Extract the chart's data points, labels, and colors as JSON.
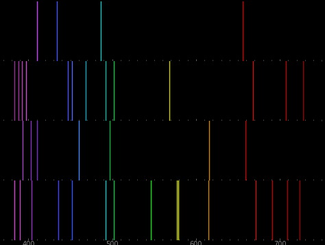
{
  "spectra": [
    {
      "lines": [
        {
          "wavelength": 410,
          "color": "#cc44ff"
        },
        {
          "wavelength": 434,
          "color": "#4455ff"
        },
        {
          "wavelength": 486,
          "color": "#00cccc"
        },
        {
          "wavelength": 656,
          "color": "#cc0000"
        }
      ]
    },
    {
      "lines": [
        {
          "wavelength": 383,
          "color": "#993399"
        },
        {
          "wavelength": 388,
          "color": "#aa33aa"
        },
        {
          "wavelength": 392,
          "color": "#bb44bb"
        },
        {
          "wavelength": 397,
          "color": "#cc55cc"
        },
        {
          "wavelength": 447,
          "color": "#4455ff"
        },
        {
          "wavelength": 452,
          "color": "#5566ff"
        },
        {
          "wavelength": 468,
          "color": "#00aacc"
        },
        {
          "wavelength": 492,
          "color": "#00bbaa"
        },
        {
          "wavelength": 502,
          "color": "#00cc44"
        },
        {
          "wavelength": 568,
          "color": "#cccc00"
        },
        {
          "wavelength": 668,
          "color": "#cc1111"
        },
        {
          "wavelength": 707,
          "color": "#bb0000"
        },
        {
          "wavelength": 728,
          "color": "#990000"
        }
      ]
    },
    {
      "lines": [
        {
          "wavelength": 393,
          "color": "#aa44cc"
        },
        {
          "wavelength": 403,
          "color": "#8833cc"
        },
        {
          "wavelength": 410,
          "color": "#7733cc"
        },
        {
          "wavelength": 460,
          "color": "#4488ff"
        },
        {
          "wavelength": 497,
          "color": "#00bb44"
        },
        {
          "wavelength": 616,
          "color": "#cc8800"
        },
        {
          "wavelength": 659,
          "color": "#cc0000"
        }
      ]
    },
    {
      "lines": [
        {
          "wavelength": 383,
          "color": "#dd44dd"
        },
        {
          "wavelength": 390,
          "color": "#cc44cc"
        },
        {
          "wavelength": 404,
          "color": "#9933cc"
        },
        {
          "wavelength": 436,
          "color": "#4444ff"
        },
        {
          "wavelength": 452,
          "color": "#3355ff"
        },
        {
          "wavelength": 492,
          "color": "#00cccc"
        },
        {
          "wavelength": 502,
          "color": "#00cc44"
        },
        {
          "wavelength": 546,
          "color": "#00ee00"
        },
        {
          "wavelength": 577,
          "color": "#ccdd00"
        },
        {
          "wavelength": 579,
          "color": "#dddd00"
        },
        {
          "wavelength": 615,
          "color": "#cc8800"
        },
        {
          "wavelength": 671,
          "color": "#cc1111"
        },
        {
          "wavelength": 691,
          "color": "#bb0000"
        },
        {
          "wavelength": 709,
          "color": "#aa0000"
        },
        {
          "wavelength": 724,
          "color": "#990000"
        }
      ]
    }
  ],
  "xlim": [
    370,
    750
  ],
  "xticks": [
    400,
    500,
    600,
    700
  ],
  "background_color": "#000000",
  "tick_color": "#888888",
  "tick_fontsize": 7,
  "line_width": 1.0
}
